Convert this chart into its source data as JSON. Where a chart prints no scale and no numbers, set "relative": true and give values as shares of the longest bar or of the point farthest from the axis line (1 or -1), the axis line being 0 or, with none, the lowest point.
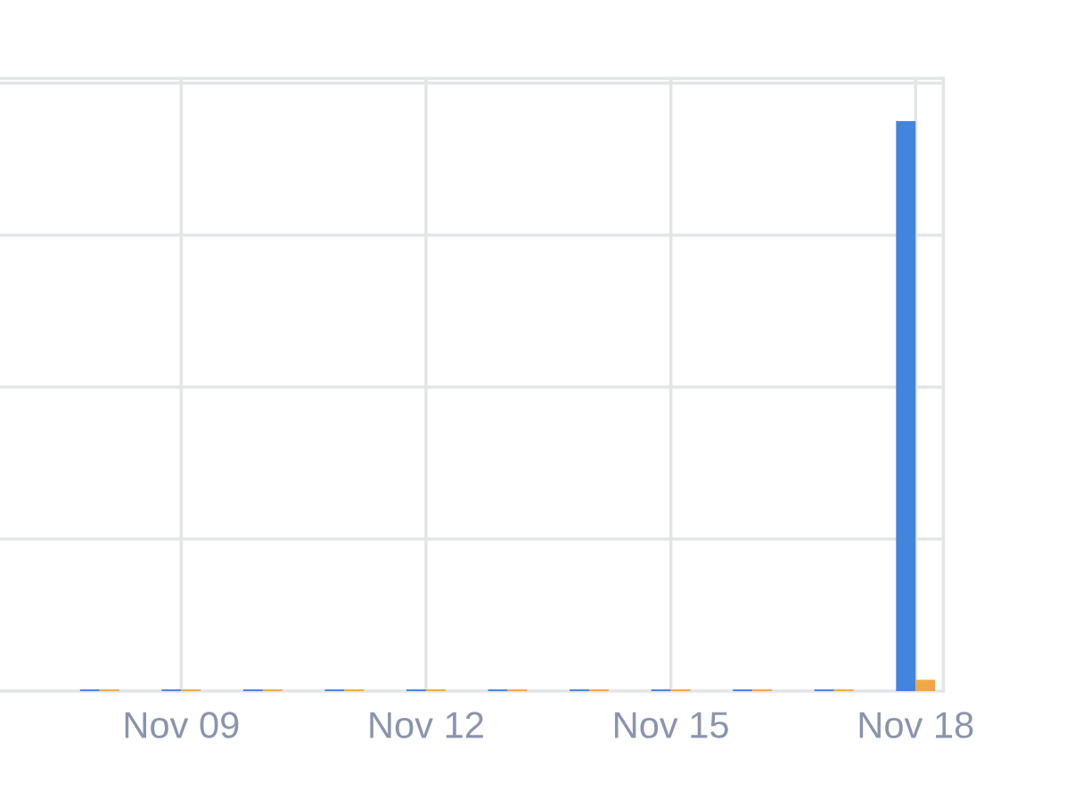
{
  "chart_data": {
    "type": "bar",
    "relative": true,
    "grid": true,
    "categories": [
      null,
      "Nov 09",
      null,
      null,
      "Nov 12",
      null,
      null,
      "Nov 15",
      null,
      null,
      "Nov 18"
    ],
    "series": [
      {
        "color": "#4385dd",
        "values": [
          0.003,
          0.003,
          0.003,
          0.003,
          0.003,
          0.003,
          0.003,
          0.003,
          0.003,
          0.003,
          1
        ]
      },
      {
        "color": "#f2a745",
        "values": [
          0.003,
          0.003,
          0.003,
          0.003,
          0.003,
          0.003,
          0.003,
          0.003,
          0.003,
          0.003,
          0.02
        ]
      }
    ]
  }
}
